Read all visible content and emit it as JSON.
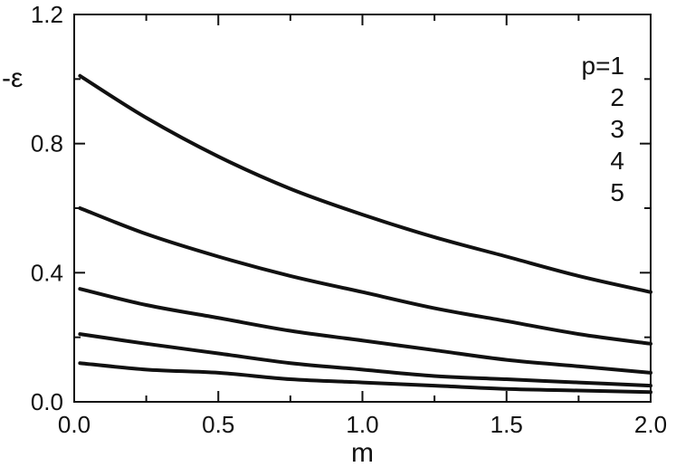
{
  "chart_data": {
    "type": "line",
    "xlabel": "m",
    "ylabel": "-ε",
    "xlim": [
      0.0,
      2.0
    ],
    "ylim": [
      0.0,
      1.2
    ],
    "xticks": [
      0.0,
      0.5,
      1.0,
      1.5,
      2.0
    ],
    "xtick_labels": [
      "0.0",
      "0.5",
      "1.0",
      "1.5",
      "2.0"
    ],
    "yticks": [
      0.0,
      0.4,
      0.8,
      1.2
    ],
    "ytick_labels": [
      "0.0",
      "0.4",
      "0.8",
      "1.2"
    ],
    "grid": false,
    "x": [
      0.02,
      0.25,
      0.5,
      0.75,
      1.0,
      1.25,
      1.5,
      1.75,
      2.0
    ],
    "series": [
      {
        "name": "p=1",
        "values": [
          1.01,
          0.88,
          0.76,
          0.66,
          0.58,
          0.51,
          0.45,
          0.39,
          0.34
        ]
      },
      {
        "name": "2",
        "values": [
          0.6,
          0.52,
          0.45,
          0.39,
          0.34,
          0.29,
          0.25,
          0.21,
          0.18
        ]
      },
      {
        "name": "3",
        "values": [
          0.35,
          0.3,
          0.26,
          0.22,
          0.19,
          0.16,
          0.13,
          0.11,
          0.09
        ]
      },
      {
        "name": "4",
        "values": [
          0.21,
          0.18,
          0.15,
          0.12,
          0.1,
          0.08,
          0.07,
          0.06,
          0.05
        ]
      },
      {
        "name": "5",
        "values": [
          0.12,
          0.1,
          0.09,
          0.07,
          0.06,
          0.05,
          0.04,
          0.035,
          0.03
        ]
      }
    ]
  }
}
